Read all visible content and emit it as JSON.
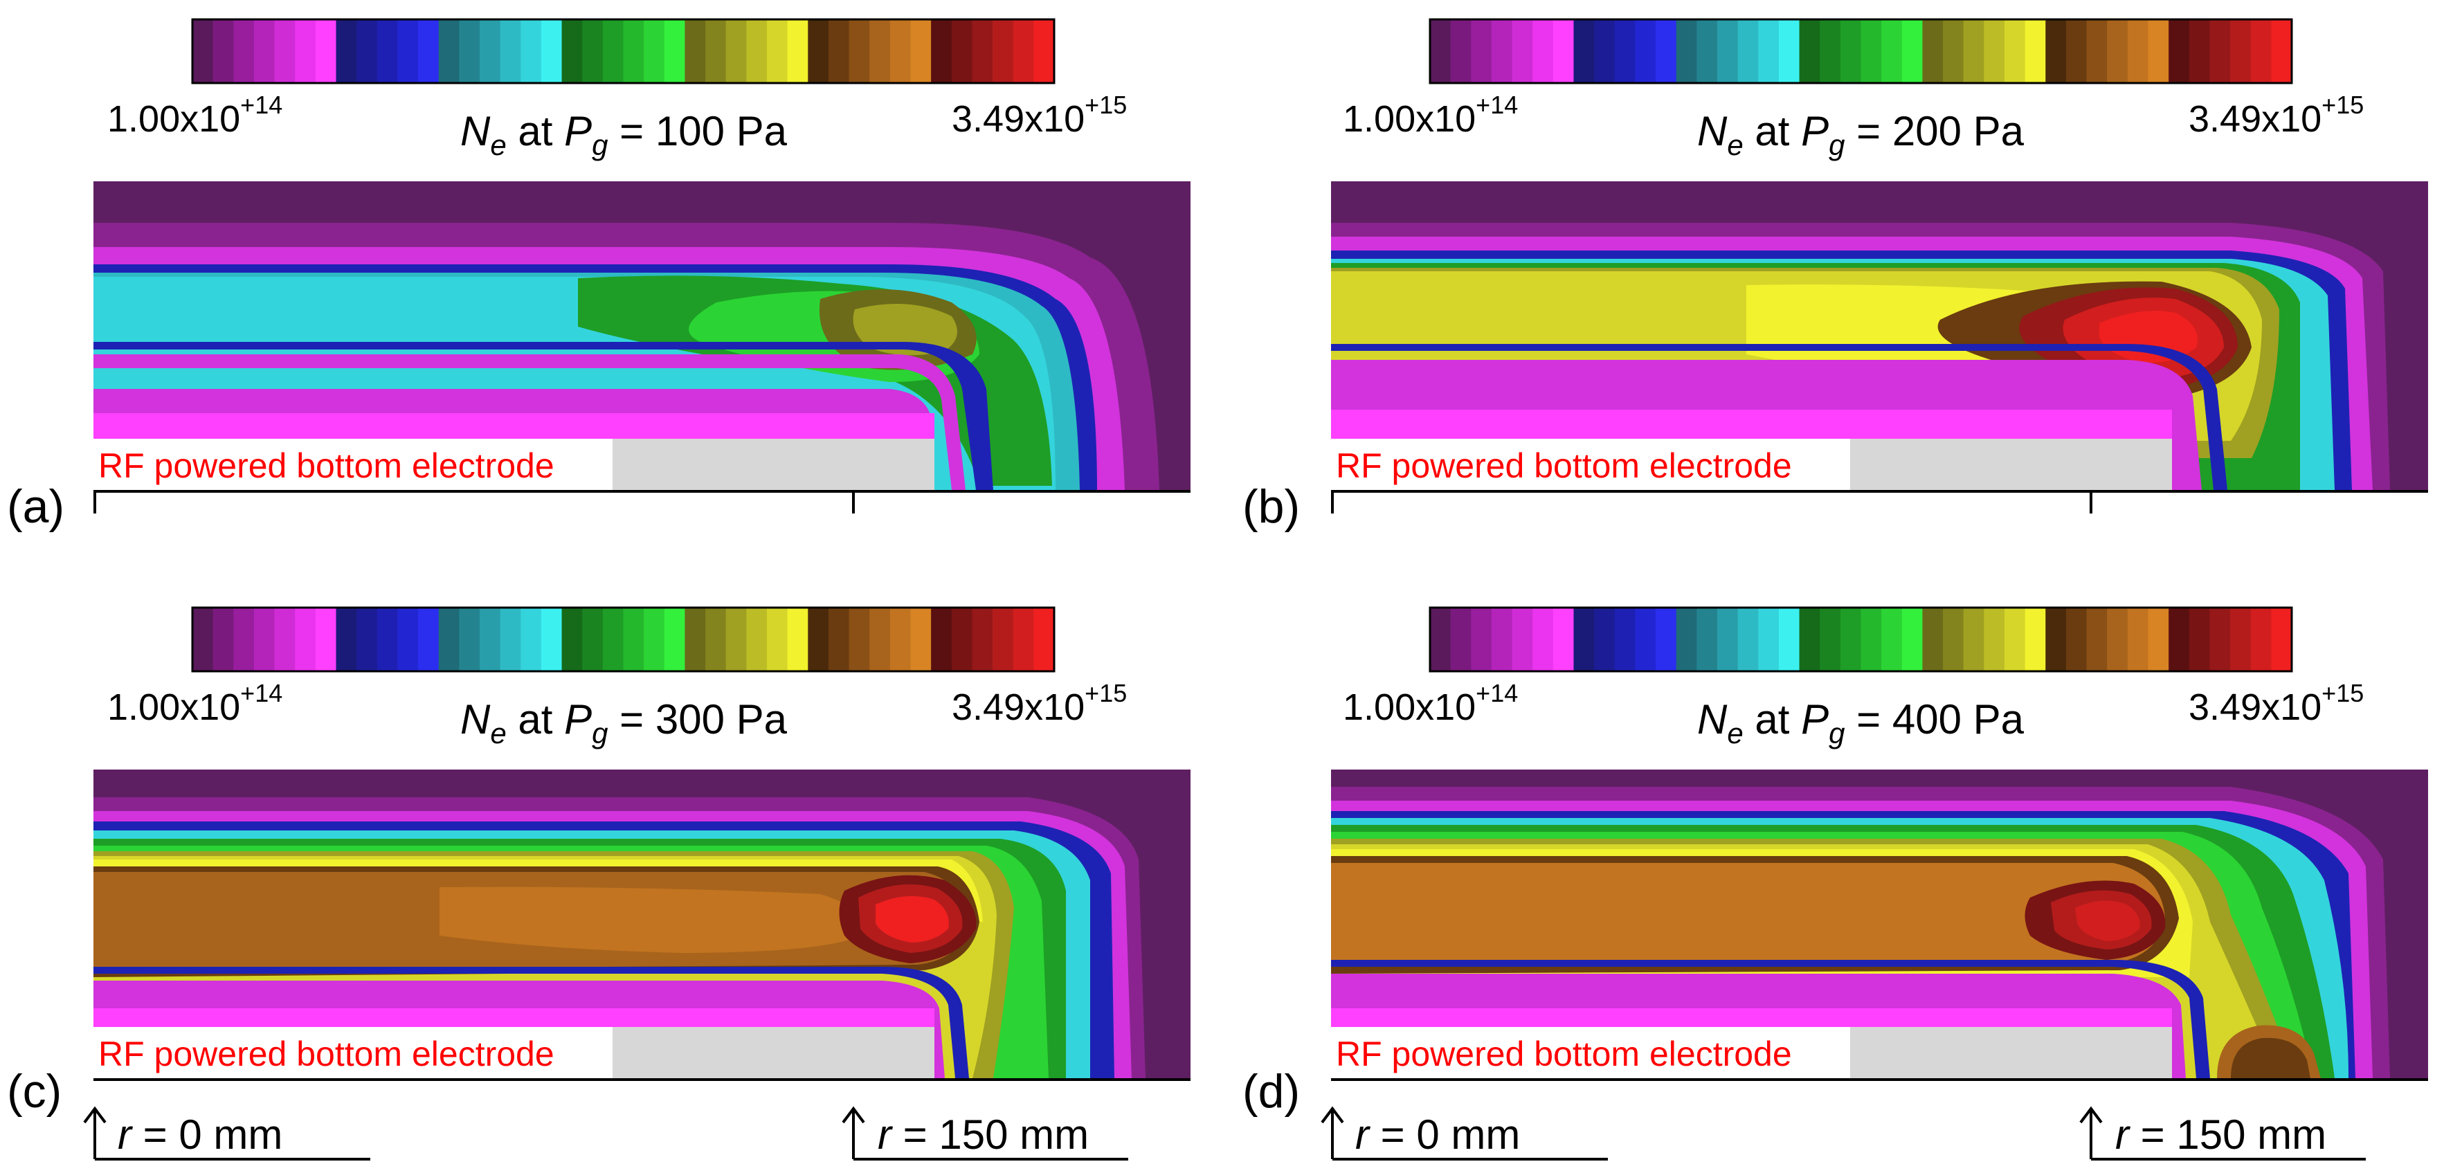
{
  "figure": {
    "colorbar": {
      "min_label": "1.00x10",
      "min_exponent": "+14",
      "max_label": "3.49x10",
      "max_exponent": "+15",
      "colors": [
        "#5a1a5c",
        "#7a1a7e",
        "#981e9e",
        "#b424bb",
        "#cf2cd6",
        "#ea34ef",
        "#ff40ff",
        "#1a1a78",
        "#1c1c96",
        "#1e20b4",
        "#2226d2",
        "#2b2eef",
        "#1f6b78",
        "#238490",
        "#289eaa",
        "#2ebac4",
        "#34d4dc",
        "#3cf0f0",
        "#156b1a",
        "#1a8420",
        "#1e9e26",
        "#24b82d",
        "#2bd434",
        "#33f03c",
        "#6b6b1a",
        "#84841e",
        "#a0a022",
        "#bcbc26",
        "#d6d62a",
        "#f2f22e",
        "#4a2a0a",
        "#6a3c10",
        "#8a5016",
        "#a8641c",
        "#c27420",
        "#d88424",
        "#5a1010",
        "#781414",
        "#961818",
        "#b41c1c",
        "#d21e1e",
        "#f02020"
      ]
    },
    "panels": [
      {
        "tag": "(a)",
        "title_prefix": "N",
        "title_sub_e": "e",
        "title_at": " at ",
        "title_p": "P",
        "title_sub_g": "g",
        "title_value": " = 100 Pa",
        "electrode_label": "RF powered bottom electrode",
        "pressure": 100,
        "axis_left_label": "",
        "axis_right_label": ""
      },
      {
        "tag": "(b)",
        "title_prefix": "N",
        "title_sub_e": "e",
        "title_at": " at ",
        "title_p": "P",
        "title_sub_g": "g",
        "title_value": " = 200 Pa",
        "electrode_label": "RF powered bottom electrode",
        "pressure": 200,
        "axis_left_label": "",
        "axis_right_label": ""
      },
      {
        "tag": "(c)",
        "title_prefix": "N",
        "title_sub_e": "e",
        "title_at": " at ",
        "title_p": "P",
        "title_sub_g": "g",
        "title_value": " = 300 Pa",
        "electrode_label": "RF powered bottom electrode",
        "pressure": 300,
        "axis_left_label": "r = 0 mm",
        "axis_right_label": "r = 150 mm"
      },
      {
        "tag": "(d)",
        "title_prefix": "N",
        "title_sub_e": "e",
        "title_at": " at ",
        "title_p": "P",
        "title_sub_g": "g",
        "title_value": " = 400 Pa",
        "electrode_label": "RF powered bottom electrode",
        "pressure": 400,
        "axis_left_label": "r = 0 mm",
        "axis_right_label": "r = 150 mm"
      }
    ],
    "axis_r_symbol": "r",
    "axis_left_value": " = 0 mm",
    "axis_right_value": " = 150 mm"
  }
}
